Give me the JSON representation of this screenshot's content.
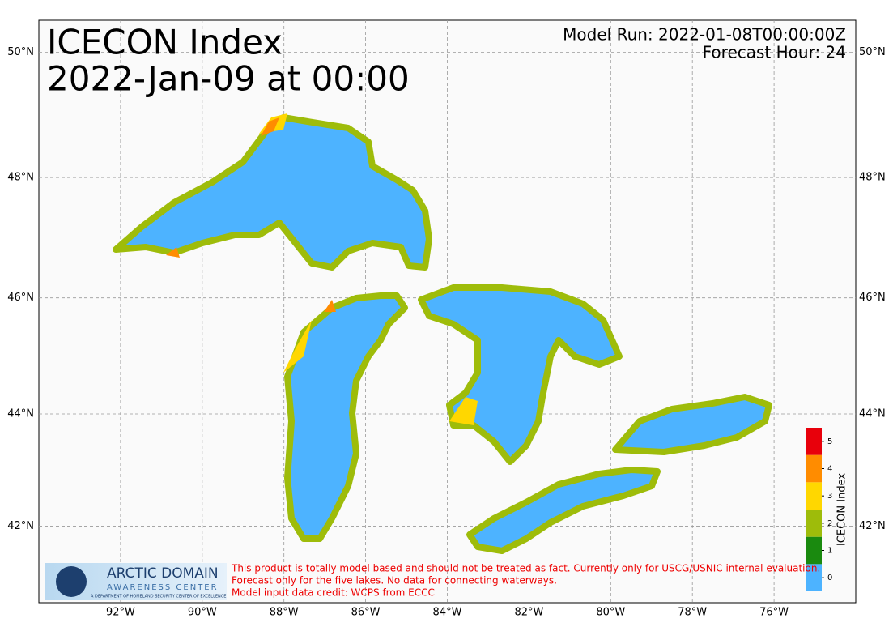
{
  "map": {
    "title": [
      "ICECON Index",
      "2022-Jan-09 at 00:00"
    ],
    "model_run": "Model Run: 2022-01-08T00:00:00Z",
    "forecast_hour": "Forecast Hour: 24",
    "xlim": [
      -94,
      -74
    ],
    "ylim": [
      40.6,
      50.5
    ],
    "lon_ticks": [
      {
        "value": -92,
        "label": "92°W"
      },
      {
        "value": -90,
        "label": "90°W"
      },
      {
        "value": -88,
        "label": "88°W"
      },
      {
        "value": -86,
        "label": "86°W"
      },
      {
        "value": -84,
        "label": "84°W"
      },
      {
        "value": -82,
        "label": "82°W"
      },
      {
        "value": -80,
        "label": "80°W"
      },
      {
        "value": -78,
        "label": "78°W"
      },
      {
        "value": -76,
        "label": "76°W"
      }
    ],
    "lat_ticks": [
      {
        "value": 42,
        "label": "42°N"
      },
      {
        "value": 44,
        "label": "44°N"
      },
      {
        "value": 46,
        "label": "46°N"
      },
      {
        "value": 48,
        "label": "48°N"
      },
      {
        "value": 50,
        "label": "50°N"
      }
    ],
    "colorbar": {
      "label": "ICECON Index",
      "levels": [
        0,
        1,
        2,
        3,
        4,
        5
      ],
      "colors": [
        "#4db3ff",
        "#1a8a0f",
        "#9ebc0a",
        "#ffd700",
        "#ff8c00",
        "#e8000b"
      ]
    },
    "logo": {
      "title": "ARCTIC DOMAIN",
      "subtitle": "AWARENESS CENTER",
      "tagline": "A DEPARTMENT OF HOMELAND SECURITY CENTER OF EXCELLENCE"
    },
    "disclaimer": [
      "This product is totally model based and should not be treated as fact. Currently only for USCG/USNIC internal evaluation.",
      "Forecast only for the five lakes. No data for connecting waterways.",
      "Model input data credit: WCPS from ECCC"
    ]
  }
}
